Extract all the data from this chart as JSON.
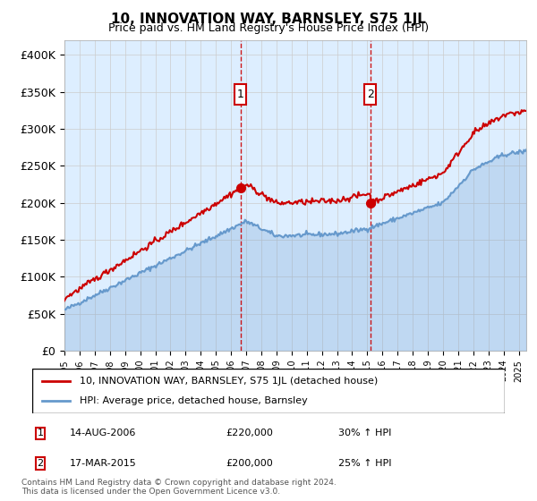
{
  "title": "10, INNOVATION WAY, BARNSLEY, S75 1JL",
  "subtitle": "Price paid vs. HM Land Registry's House Price Index (HPI)",
  "hpi_label": "HPI: Average price, detached house, Barnsley",
  "property_label": "10, INNOVATION WAY, BARNSLEY, S75 1JL (detached house)",
  "footnote": "Contains HM Land Registry data © Crown copyright and database right 2024.\nThis data is licensed under the Open Government Licence v3.0.",
  "sale1_date": "14-AUG-2006",
  "sale1_price": "£220,000",
  "sale1_hpi": "30% ↑ HPI",
  "sale2_date": "17-MAR-2015",
  "sale2_price": "£200,000",
  "sale2_hpi": "25% ↑ HPI",
  "sale1_x": 2006.62,
  "sale2_x": 2015.21,
  "ylim_min": 0,
  "ylim_max": 420000,
  "xlim_min": 1995,
  "xlim_max": 2025.5,
  "yticks": [
    0,
    50000,
    100000,
    150000,
    200000,
    250000,
    300000,
    350000,
    400000
  ],
  "ytick_labels": [
    "£0",
    "£50K",
    "£100K",
    "£150K",
    "£200K",
    "£250K",
    "£300K",
    "£350K",
    "£400K"
  ],
  "xticks": [
    1995,
    1996,
    1997,
    1998,
    1999,
    2000,
    2001,
    2002,
    2003,
    2004,
    2005,
    2006,
    2007,
    2008,
    2009,
    2010,
    2011,
    2012,
    2013,
    2014,
    2015,
    2016,
    2017,
    2018,
    2019,
    2020,
    2021,
    2022,
    2023,
    2024,
    2025
  ],
  "property_color": "#cc0000",
  "hpi_color": "#6699cc",
  "background_fill": "#ddeeff",
  "grid_color": "#cccccc",
  "sale_marker_color": "#cc0000",
  "sale_box_color": "#cc0000"
}
